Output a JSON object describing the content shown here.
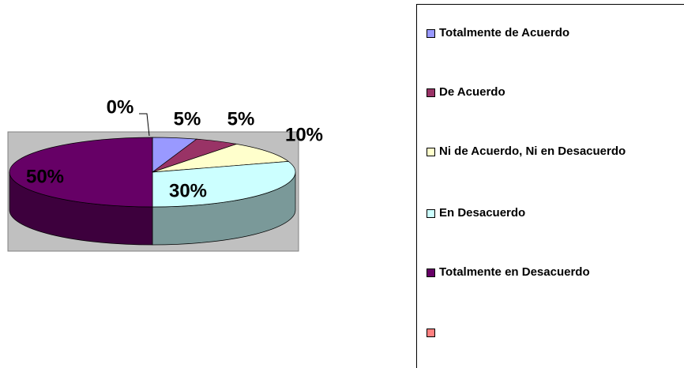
{
  "chart_data": {
    "type": "pie3d",
    "categories": [
      "Totalmente de Acuerdo",
      "De Acuerdo",
      "Ni de Acuerdo, Ni en Desacuerdo",
      "En Desacuerdo",
      "Totalmente en Desacuerdo",
      null
    ],
    "values": [
      5,
      5,
      10,
      30,
      50,
      0
    ],
    "value_labels": [
      "5%",
      "5%",
      "10%",
      "30%",
      "50%",
      "0%"
    ],
    "colors": [
      "#9999ff",
      "#993366",
      "#ffffcc",
      "#ccffff",
      "#660066",
      "#ff8080"
    ],
    "legend": "right"
  }
}
